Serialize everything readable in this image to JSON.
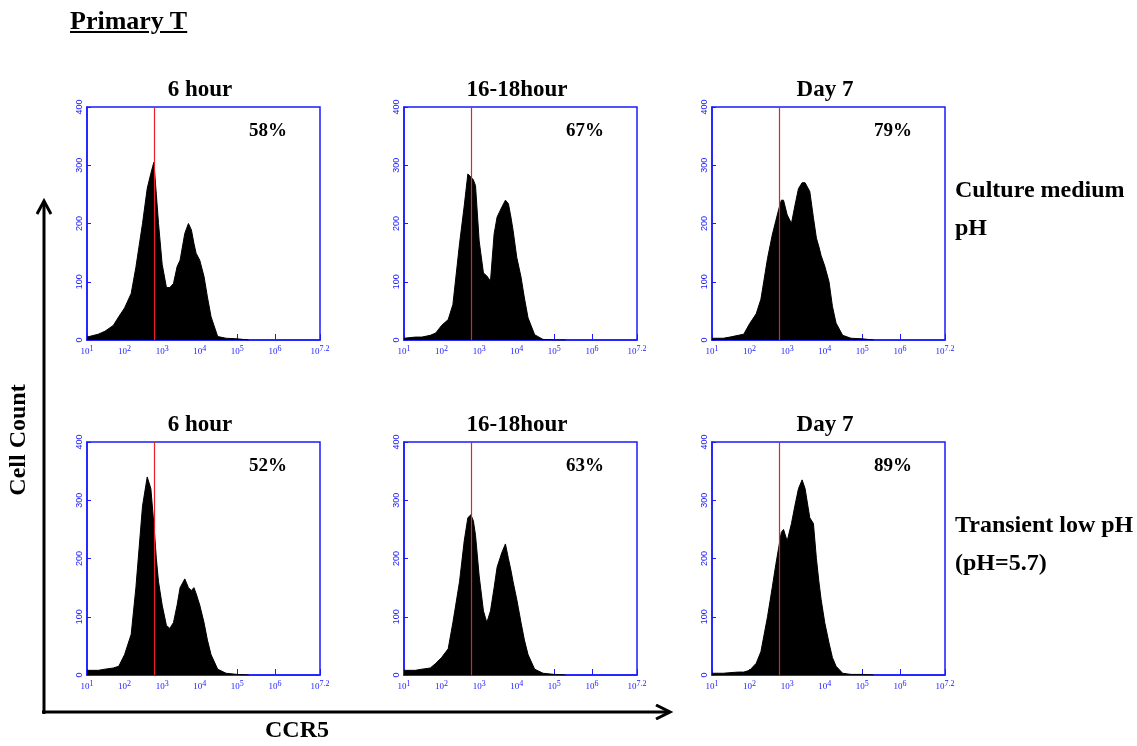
{
  "chart_data": [
    {
      "type": "area",
      "title": "6 hour",
      "annotations": [
        "58%",
        "Primary T"
      ],
      "log": "x",
      "x": [
        10,
        20,
        30,
        50,
        70,
        100,
        150,
        200,
        300,
        400,
        500,
        600,
        700,
        800,
        1000,
        1300,
        1600,
        2000,
        2500,
        3000,
        4000,
        5000,
        6000,
        7000,
        8000,
        10000,
        13000,
        16000,
        20000,
        30000,
        50000,
        100000,
        200000
      ],
      "series": [
        {
          "color": "#000000",
          "values": [
            5,
            10,
            15,
            25,
            40,
            55,
            80,
            125,
            200,
            260,
            286,
            305,
            250,
            200,
            130,
            90,
            90,
            97,
            126,
            137,
            183,
            200,
            189,
            166,
            149,
            137,
            109,
            74,
            40,
            6,
            3,
            2,
            0
          ]
        }
      ],
      "xlim": [
        10,
        15848932
      ],
      "xticks": [
        {
          "value": 10,
          "label": "10$^{1}$"
        },
        {
          "value": 100,
          "label": "10$^{2}$"
        },
        {
          "value": 1000,
          "label": "10$^{3}$"
        },
        {
          "value": 10000,
          "label": "10$^{4}$"
        },
        {
          "value": 100000,
          "label": "10$^{5}$"
        },
        {
          "value": 1000000,
          "label": "10$^{6}$"
        },
        {
          "value": 15848932,
          "label": "10$^{7.2}$"
        }
      ],
      "ylim": [
        0,
        400
      ],
      "yticks": [
        0,
        100,
        200,
        300,
        400
      ],
      "ref_lines": [
        {
          "axis": "x",
          "value": 600,
          "color": "#e8202a"
        }
      ]
    },
    {
      "type": "area",
      "title": "16-18hour",
      "annotations": [
        "67%"
      ],
      "log": "x",
      "x": [
        10,
        20,
        30,
        50,
        70,
        100,
        150,
        200,
        300,
        400,
        500,
        600,
        700,
        800,
        1000,
        1300,
        1600,
        2000,
        2500,
        3000,
        4000,
        5000,
        6000,
        7000,
        8000,
        10000,
        13000,
        16000,
        20000,
        30000,
        50000,
        100000,
        200000
      ],
      "series": [
        {
          "color": "#000000",
          "values": [
            3,
            5,
            5,
            8,
            12,
            25,
            35,
            61,
            165,
            230,
            285,
            280,
            275,
            265,
            170,
            115,
            110,
            101,
            182,
            211,
            228,
            240,
            234,
            211,
            188,
            142,
            108,
            72,
            38,
            9,
            1,
            0,
            0
          ]
        }
      ],
      "xlim": [
        10,
        15848932
      ],
      "xticks": [
        {
          "value": 10,
          "label": "10$^{1}$"
        },
        {
          "value": 100,
          "label": "10$^{2}$"
        },
        {
          "value": 1000,
          "label": "10$^{3}$"
        },
        {
          "value": 10000,
          "label": "10$^{4}$"
        },
        {
          "value": 100000,
          "label": "10$^{5}$"
        },
        {
          "value": 1000000,
          "label": "10$^{6}$"
        },
        {
          "value": 15848932,
          "label": "10$^{7.2}$"
        }
      ],
      "ylim": [
        0,
        400
      ],
      "yticks": [
        0,
        100,
        200,
        300,
        400
      ],
      "ref_lines": [
        {
          "axis": "x",
          "value": 600,
          "color": "#e8202a"
        }
      ]
    },
    {
      "type": "area",
      "title": "Day 7",
      "annotations": [
        "79%",
        "Culture medium pH"
      ],
      "log": "x",
      "x": [
        10,
        20,
        30,
        50,
        70,
        100,
        150,
        200,
        300,
        400,
        500,
        600,
        700,
        800,
        1000,
        1300,
        1600,
        2000,
        2500,
        3000,
        4000,
        5000,
        6000,
        7000,
        8000,
        10000,
        13000,
        16000,
        20000,
        30000,
        50000,
        100000,
        200000
      ],
      "series": [
        {
          "color": "#000000",
          "values": [
            3,
            3,
            5,
            8,
            10,
            28,
            45,
            70,
            140,
            180,
            205,
            225,
            240,
            240,
            215,
            200,
            230,
            260,
            270,
            270,
            255,
            210,
            175,
            160,
            145,
            127,
            100,
            58,
            29,
            8,
            3,
            2,
            0
          ]
        }
      ],
      "xlim": [
        10,
        15848932
      ],
      "xticks": [
        {
          "value": 10,
          "label": "10$^{1}$"
        },
        {
          "value": 100,
          "label": "10$^{2}$"
        },
        {
          "value": 1000,
          "label": "10$^{3}$"
        },
        {
          "value": 10000,
          "label": "10$^{4}$"
        },
        {
          "value": 100000,
          "label": "10$^{5}$"
        },
        {
          "value": 1000000,
          "label": "10$^{6}$"
        },
        {
          "value": 15848932,
          "label": "10$^{7.2}$"
        }
      ],
      "ylim": [
        0,
        400
      ],
      "yticks": [
        0,
        100,
        200,
        300,
        400
      ],
      "ref_lines": [
        {
          "axis": "x",
          "value": 600,
          "color": "#e8202a"
        }
      ]
    },
    {
      "type": "area",
      "title": "6 hour",
      "xlabel": "CCR5",
      "ylabel": "Cell Count",
      "annotations": [
        "52%"
      ],
      "log": "x",
      "x": [
        10,
        20,
        30,
        50,
        70,
        100,
        150,
        200,
        300,
        400,
        500,
        600,
        700,
        800,
        1000,
        1300,
        1600,
        2000,
        2500,
        3000,
        4000,
        5000,
        6000,
        7000,
        8000,
        10000,
        13000,
        16000,
        20000,
        30000,
        50000,
        100000,
        200000
      ],
      "series": [
        {
          "color": "#000000",
          "values": [
            8,
            8,
            10,
            12,
            15,
            35,
            70,
            150,
            290,
            340,
            320,
            260,
            200,
            160,
            120,
            85,
            80,
            90,
            120,
            150,
            165,
            150,
            145,
            150,
            140,
            120,
            90,
            60,
            35,
            10,
            3,
            1,
            0
          ]
        }
      ],
      "xlim": [
        10,
        15848932
      ],
      "xticks": [
        {
          "value": 10,
          "label": "10$^{1}$"
        },
        {
          "value": 100,
          "label": "10$^{2}$"
        },
        {
          "value": 1000,
          "label": "10$^{3}$"
        },
        {
          "value": 10000,
          "label": "10$^{4}$"
        },
        {
          "value": 100000,
          "label": "10$^{5}$"
        },
        {
          "value": 1000000,
          "label": "10$^{6}$"
        },
        {
          "value": 15848932,
          "label": "10$^{7.2}$"
        }
      ],
      "ylim": [
        0,
        400
      ],
      "yticks": [
        0,
        100,
        200,
        300,
        400
      ],
      "ref_lines": [
        {
          "axis": "x",
          "value": 600,
          "color": "#e8202a"
        }
      ]
    },
    {
      "type": "area",
      "title": "16-18hour",
      "annotations": [
        "63%"
      ],
      "log": "x",
      "x": [
        10,
        20,
        30,
        50,
        70,
        100,
        150,
        200,
        300,
        400,
        500,
        600,
        700,
        800,
        1000,
        1300,
        1600,
        2000,
        2500,
        3000,
        4000,
        5000,
        6000,
        7000,
        8000,
        10000,
        13000,
        16000,
        20000,
        30000,
        50000,
        100000,
        200000
      ],
      "series": [
        {
          "color": "#000000",
          "values": [
            8,
            8,
            10,
            12,
            20,
            30,
            45,
            90,
            160,
            230,
            270,
            275,
            265,
            240,
            170,
            110,
            90,
            110,
            150,
            185,
            210,
            225,
            200,
            180,
            160,
            130,
            90,
            60,
            35,
            10,
            3,
            1,
            0
          ]
        }
      ],
      "xlim": [
        10,
        15848932
      ],
      "xticks": [
        {
          "value": 10,
          "label": "10$^{1}$"
        },
        {
          "value": 100,
          "label": "10$^{2}$"
        },
        {
          "value": 1000,
          "label": "10$^{3}$"
        },
        {
          "value": 10000,
          "label": "10$^{4}$"
        },
        {
          "value": 100000,
          "label": "10$^{5}$"
        },
        {
          "value": 1000000,
          "label": "10$^{6}$"
        },
        {
          "value": 15848932,
          "label": "10$^{7.2}$"
        }
      ],
      "ylim": [
        0,
        400
      ],
      "yticks": [
        0,
        100,
        200,
        300,
        400
      ],
      "ref_lines": [
        {
          "axis": "x",
          "value": 600,
          "color": "#e8202a"
        }
      ]
    },
    {
      "type": "area",
      "title": "Day 7",
      "annotations": [
        "89%",
        "Transient low pH (pH=5.7)"
      ],
      "log": "x",
      "x": [
        10,
        20,
        30,
        50,
        70,
        100,
        150,
        200,
        300,
        400,
        500,
        600,
        700,
        800,
        1000,
        1300,
        1600,
        2000,
        2500,
        3000,
        4000,
        5000,
        6000,
        7000,
        8000,
        10000,
        13000,
        16000,
        20000,
        30000,
        50000,
        100000,
        200000
      ],
      "series": [
        {
          "color": "#000000",
          "values": [
            3,
            3,
            4,
            5,
            5,
            8,
            20,
            40,
            100,
            150,
            190,
            220,
            245,
            250,
            230,
            260,
            290,
            320,
            335,
            320,
            270,
            260,
            200,
            160,
            130,
            90,
            55,
            30,
            15,
            3,
            1,
            1,
            0
          ]
        }
      ],
      "xlim": [
        10,
        15848932
      ],
      "xticks": [
        {
          "value": 10,
          "label": "10$^{1}$"
        },
        {
          "value": 100,
          "label": "10$^{2}$"
        },
        {
          "value": 1000,
          "label": "10$^{3}$"
        },
        {
          "value": 10000,
          "label": "10$^{4}$"
        },
        {
          "value": 100000,
          "label": "10$^{5}$"
        },
        {
          "value": 1000000,
          "label": "10$^{6}$"
        },
        {
          "value": 15848932,
          "label": "10$^{7.2}$"
        }
      ],
      "ylim": [
        0,
        400
      ],
      "yticks": [
        0,
        100,
        200,
        300,
        400
      ],
      "ref_lines": [
        {
          "axis": "x",
          "value": 600,
          "color": "#e8202a"
        }
      ]
    }
  ]
}
